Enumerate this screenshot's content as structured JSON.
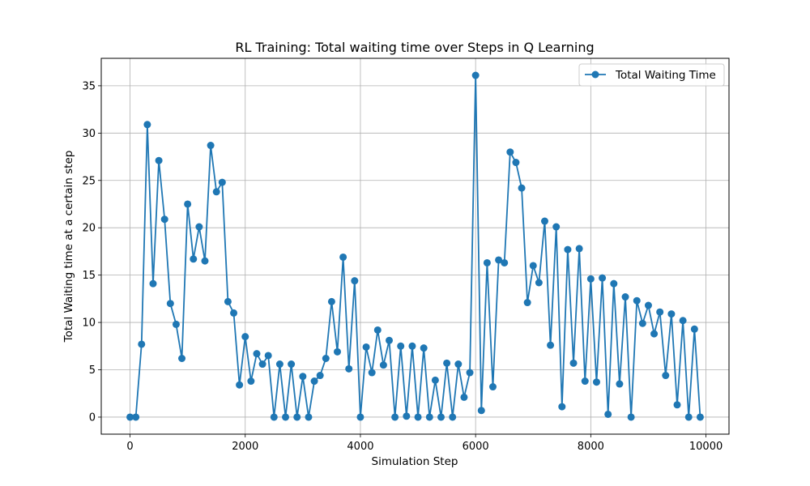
{
  "chart_data": {
    "type": "line",
    "title": "RL Training: Total waiting time over Steps in Q Learning",
    "xlabel": "Simulation Step",
    "ylabel": "Total Waiting time at a certain step",
    "xlim": [
      -500,
      10400
    ],
    "ylim": [
      -1.8,
      37.9
    ],
    "xticks": [
      0,
      2000,
      4000,
      6000,
      8000,
      10000
    ],
    "yticks": [
      0,
      5,
      10,
      15,
      20,
      25,
      30,
      35
    ],
    "grid": true,
    "legend_position": "top-right",
    "series": [
      {
        "name": "Total Waiting Time",
        "color": "#1f77b4",
        "marker": "circle",
        "x": [
          0,
          100,
          200,
          300,
          400,
          500,
          600,
          700,
          800,
          900,
          1000,
          1100,
          1200,
          1300,
          1400,
          1500,
          1600,
          1700,
          1800,
          1900,
          2000,
          2100,
          2200,
          2300,
          2400,
          2500,
          2600,
          2700,
          2800,
          2900,
          3000,
          3100,
          3200,
          3300,
          3400,
          3500,
          3600,
          3700,
          3800,
          3900,
          4000,
          4100,
          4200,
          4300,
          4400,
          4500,
          4600,
          4700,
          4800,
          4900,
          5000,
          5100,
          5200,
          5300,
          5400,
          5500,
          5600,
          5700,
          5800,
          5900,
          6000,
          6100,
          6200,
          6300,
          6400,
          6500,
          6600,
          6700,
          6800,
          6900,
          7000,
          7100,
          7200,
          7300,
          7400,
          7500,
          7600,
          7700,
          7800,
          7900,
          8000,
          8100,
          8200,
          8300,
          8400,
          8500,
          8600,
          8700,
          8800,
          8900,
          9000,
          9100,
          9200,
          9300,
          9400,
          9500,
          9600,
          9700,
          9800,
          9900
        ],
        "y": [
          0,
          0,
          7.7,
          30.9,
          14.1,
          27.1,
          20.9,
          12.0,
          9.8,
          6.2,
          22.5,
          16.7,
          20.1,
          16.5,
          28.7,
          23.8,
          24.8,
          12.2,
          11.0,
          3.4,
          8.5,
          3.8,
          6.7,
          5.6,
          6.5,
          0,
          5.6,
          0,
          5.6,
          0,
          4.3,
          0,
          3.8,
          4.4,
          6.2,
          12.2,
          6.9,
          16.9,
          5.1,
          14.4,
          0,
          7.4,
          4.7,
          9.2,
          5.5,
          8.1,
          0,
          7.5,
          0.1,
          7.5,
          0,
          7.3,
          0,
          3.9,
          0,
          5.7,
          0,
          5.6,
          2.1,
          4.7,
          36.1,
          0.7,
          16.3,
          3.2,
          16.6,
          16.3,
          28.0,
          26.9,
          24.2,
          12.1,
          16.0,
          14.2,
          20.7,
          7.6,
          20.1,
          1.1,
          17.7,
          5.7,
          17.8,
          3.8,
          14.6,
          3.7,
          14.7,
          0.3,
          14.1,
          3.5,
          12.7,
          0,
          12.3,
          9.9,
          11.8,
          8.8,
          11.1,
          4.4,
          10.9,
          1.3,
          10.2,
          0,
          9.3,
          0
        ]
      }
    ]
  }
}
